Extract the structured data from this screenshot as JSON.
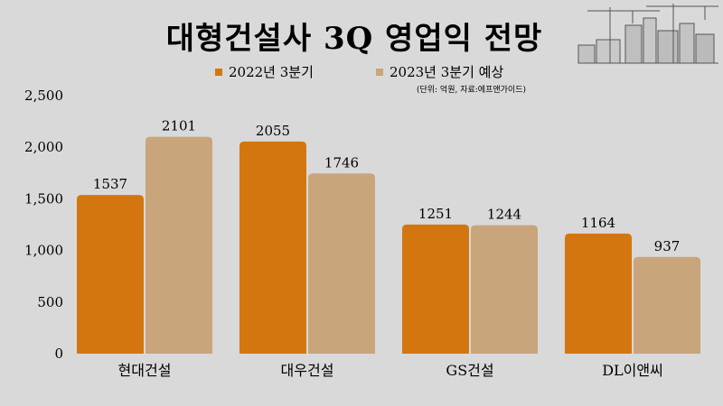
{
  "chart_data": {
    "type": "bar",
    "title": "대형건설사 3Q 영업익 전망",
    "note": "(단위: 억원, 자료:에프앤가이드)",
    "categories": [
      "현대건설",
      "대우건설",
      "GS건설",
      "DL이앤씨"
    ],
    "series": [
      {
        "name": "2022년 3분기",
        "values": [
          1537,
          2055,
          1251,
          1164
        ],
        "color": "#d4760f"
      },
      {
        "name": "2023년 3분기 예상",
        "values": [
          2101,
          1746,
          1244,
          937
        ],
        "color": "#c9a57b"
      }
    ],
    "ylim": [
      0,
      2500
    ],
    "yticks": [
      "0",
      "500",
      "1,000",
      "1,500",
      "2,000",
      "2,500"
    ],
    "ytick_values": [
      0,
      500,
      1000,
      1500,
      2000,
      2500
    ],
    "legend_position": "top-center",
    "grid": false
  }
}
